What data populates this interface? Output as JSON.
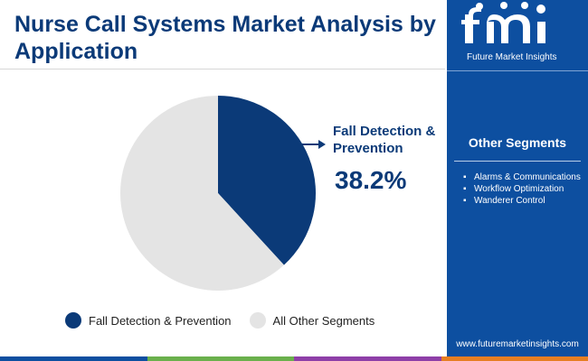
{
  "title": "Nurse Call Systems Market Analysis by Application",
  "chart_data": {
    "type": "pie",
    "slices": [
      {
        "label": "Fall Detection & Prevention",
        "value": 38.2,
        "color": "#0b3a78"
      },
      {
        "label": "All Other Segments",
        "value": 61.8,
        "color": "#e4e4e4"
      }
    ],
    "legend_position": "bottom"
  },
  "callout": {
    "label": "Fall Detection & Prevention",
    "value": "38.2%"
  },
  "legend": [
    {
      "label": "Fall Detection & Prevention",
      "color": "#0b3a78"
    },
    {
      "label": "All Other Segments",
      "color": "#e4e4e4"
    }
  ],
  "sidebar": {
    "logo_text": "fmi",
    "logo_subtitle": "Future Market Insights",
    "other_segments_title": "Other Segments",
    "other_segments": [
      "Alarms & Communications",
      "Workflow Optimization",
      "Wanderer Control"
    ],
    "website": "www.futuremarketinsights.com"
  },
  "colors": {
    "brand_blue": "#0d4fa0",
    "dark_blue": "#0b3a78",
    "bottom_bar": [
      "#0d4fa0",
      "#6ab04c",
      "#8e3fa8",
      "#e67e22"
    ]
  }
}
